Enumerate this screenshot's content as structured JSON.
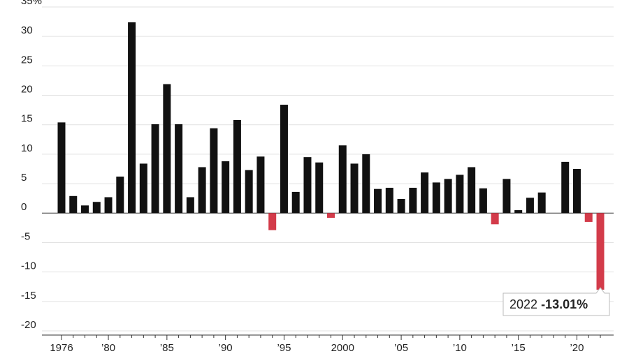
{
  "chart_data": {
    "type": "bar",
    "categories": [
      "1976",
      null,
      null,
      null,
      "’80",
      null,
      null,
      null,
      null,
      "’85",
      null,
      null,
      null,
      null,
      "’90",
      null,
      null,
      null,
      null,
      "’95",
      null,
      null,
      null,
      null,
      "2000",
      null,
      null,
      null,
      null,
      "’05",
      null,
      null,
      null,
      null,
      "’10",
      null,
      null,
      null,
      null,
      "’15",
      null,
      null,
      null,
      null,
      "’20",
      null,
      null
    ],
    "series": [
      {
        "color": "#111111",
        "negative_color": "#d33b4a",
        "values": [
          15.4,
          2.9,
          1.3,
          1.9,
          2.7,
          6.2,
          32.4,
          8.4,
          15.1,
          21.9,
          15.1,
          2.7,
          7.8,
          14.4,
          8.8,
          15.8,
          7.3,
          9.6,
          -2.9,
          18.4,
          3.6,
          9.5,
          8.6,
          -0.8,
          11.5,
          8.4,
          10.0,
          4.1,
          4.3,
          2.4,
          4.3,
          6.9,
          5.2,
          5.8,
          6.5,
          7.8,
          4.2,
          -1.9,
          5.8,
          0.5,
          2.6,
          3.5,
          0.0,
          8.7,
          7.5,
          -1.5,
          -13.01
        ]
      }
    ],
    "ylim": [
      -20,
      35
    ],
    "yticks": [
      {
        "value": 35,
        "label": "35%"
      },
      30,
      25,
      20,
      15,
      10,
      5,
      0,
      -5,
      -10,
      -15,
      -20
    ],
    "grid": true,
    "annotation": {
      "label": "2022",
      "value_label": "-13.01%"
    }
  }
}
